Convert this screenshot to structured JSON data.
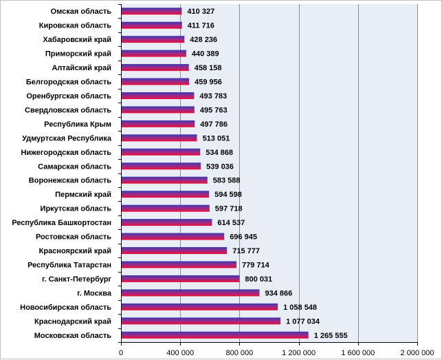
{
  "chart_data": {
    "type": "bar",
    "orientation": "horizontal",
    "title": "",
    "xlabel": "",
    "ylabel": "",
    "xlim": [
      0,
      2000000
    ],
    "xticks": [
      0,
      400000,
      800000,
      1200000,
      1600000,
      2000000
    ],
    "xtick_labels": [
      "0",
      "400 000",
      "800 000",
      "1 200 000",
      "1 600 000",
      "2 000 000"
    ],
    "grid": "vertical",
    "legend": "none",
    "colors": {
      "bar_top": "#3a3ab0",
      "bar_mid": "#9b2a8a",
      "bar_bottom": "#e8113a",
      "plot_bg": "#e9edf6",
      "grid": "#8c8c8c"
    },
    "categories": [
      "Омская  область",
      "Кировская  область",
      "Хабаровский  край",
      "Приморский  край",
      "Алтайский  край",
      "Белгородская  область",
      "Оренбургская  область",
      "Свердловская  область",
      "Республика  Крым",
      "Удмуртская  Республика",
      "Нижегородская  область",
      "Самарская  область",
      "Воронежская  область",
      "Пермский  край",
      "Иркутская  область",
      "Республика  Башкортостан",
      "Ростовская  область",
      "Красноярский  край",
      "Республика  Татарстан",
      "г. Санкт-Петербург",
      "г. Москва",
      "Новосибирская  область",
      "Краснодарский  край",
      "Московская  область"
    ],
    "values": [
      410327,
      411716,
      428236,
      440389,
      458158,
      459956,
      493783,
      495763,
      497786,
      513051,
      534868,
      539036,
      583588,
      594598,
      597718,
      614537,
      696945,
      715777,
      779714,
      800031,
      934866,
      1058548,
      1077034,
      1265555
    ],
    "value_labels": [
      "410 327",
      "411 716",
      "428 236",
      "440 389",
      "458 158",
      "459 956",
      "493 783",
      "495 763",
      "497 786",
      "513 051",
      "534 868",
      "539 036",
      "583 588",
      "594 598",
      "597 718",
      "614 537",
      "696 945",
      "715 777",
      "779 714",
      "800 031",
      "934 866",
      "1 058 548",
      "1 077 034",
      "1 265 555"
    ]
  }
}
